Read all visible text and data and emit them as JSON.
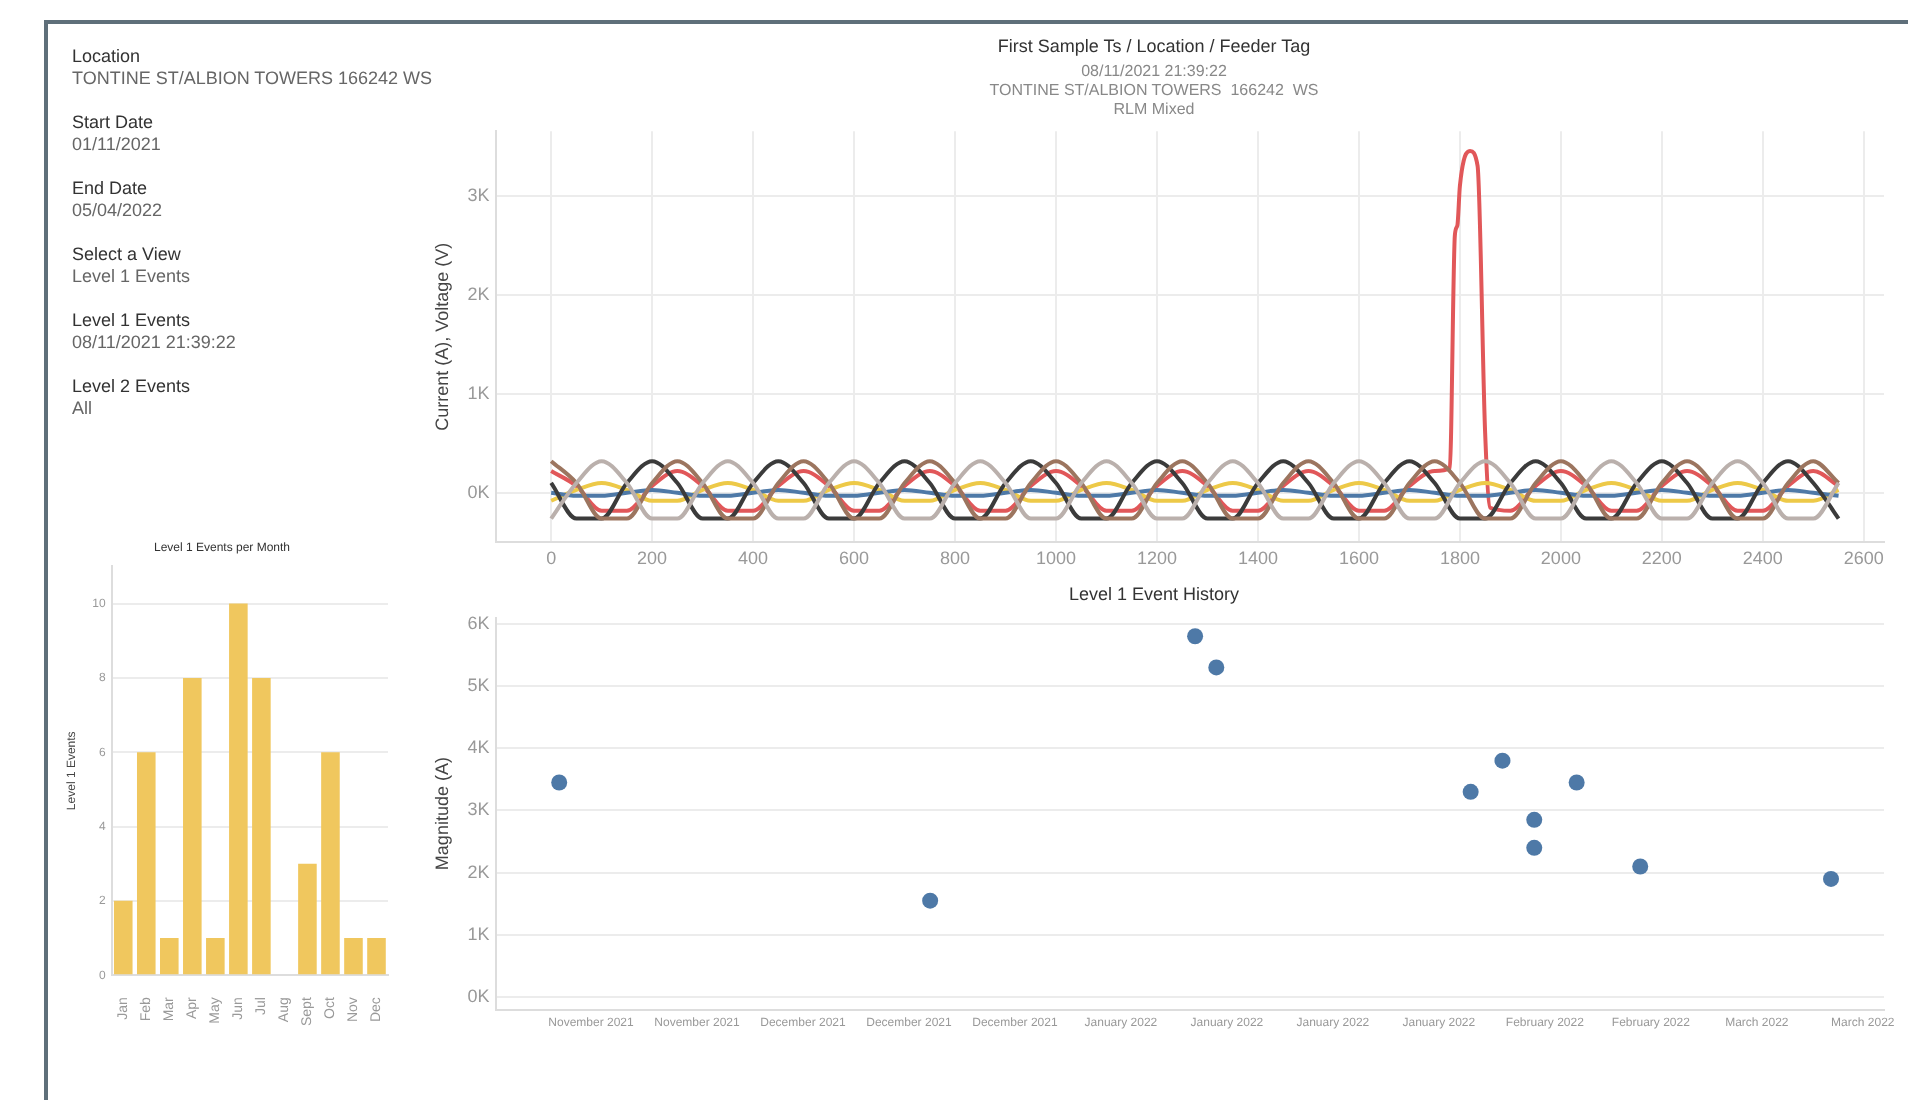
{
  "chart_data": [
    {
      "type": "other",
      "annotations": [
        "Location",
        "TONTINE ST/ALBION TOWERS  166242  WS",
        "Start Date",
        "01/11/2021",
        "End Date",
        "05/04/2022",
        "Select a View",
        "Level 1 Events",
        "Level 1 Events",
        "08/11/2021 21:39:22",
        "Level 2 Events",
        "All"
      ]
    },
    {
      "type": "line",
      "title": "First Sample Ts / Location / Feeder Tag",
      "subtitle": "08/11/2021 21:39:22\nTONTINE ST/ALBION TOWERS  166242  WS\nRLM Mixed",
      "ylabel": "Current (A), Voltage (V)",
      "grid": true,
      "legend": false,
      "marker": "none",
      "line_style": "solid",
      "xlim": [
        -110,
        2640
      ],
      "xticks": [
        0,
        200,
        400,
        600,
        800,
        1000,
        1200,
        1400,
        1600,
        1800,
        2000,
        2200,
        2400,
        2600
      ],
      "ylim": [
        -500,
        3650
      ],
      "yticks": [
        {
          "value": 0,
          "label": "0K"
        },
        {
          "value": 1000,
          "label": "1K"
        },
        {
          "value": 2000,
          "label": "2K"
        },
        {
          "value": 3000,
          "label": "3K"
        }
      ],
      "x": [
        0,
        50,
        100,
        150,
        200,
        250,
        300,
        350,
        400,
        450,
        500,
        550,
        600,
        650,
        700,
        750,
        800,
        850,
        900,
        950,
        1000,
        1050,
        1100,
        1150,
        1200,
        1250,
        1300,
        1350,
        1400,
        1450,
        1500,
        1550,
        1600,
        1650,
        1700,
        1750,
        1800,
        1850,
        1900,
        1950,
        2000,
        2050,
        2100,
        2150,
        2200,
        2250,
        2300,
        2350,
        2400,
        2450,
        2500,
        2550
      ],
      "series": [
        {
          "color": "#bab0ac",
          "values": [
            -260,
            100,
            320,
            100,
            -260,
            -260,
            100,
            320,
            100,
            -260,
            -260,
            100,
            320,
            100,
            -260,
            -260,
            100,
            320,
            100,
            -260,
            -260,
            100,
            320,
            100,
            -260,
            -260,
            100,
            320,
            100,
            -260,
            -260,
            100,
            320,
            100,
            -260,
            -260,
            100,
            320,
            100,
            -260,
            -260,
            100,
            320,
            100,
            -260,
            -260,
            100,
            320,
            100,
            -260,
            -260,
            100
          ]
        },
        {
          "color": "#9c755f",
          "values": [
            320,
            100,
            -260,
            -260,
            100,
            320,
            100,
            -260,
            -260,
            100,
            320,
            100,
            -260,
            -260,
            100,
            320,
            100,
            -260,
            -260,
            100,
            320,
            100,
            -260,
            -260,
            100,
            320,
            100,
            -260,
            -260,
            100,
            320,
            100,
            -260,
            -260,
            100,
            320,
            100,
            -260,
            -260,
            100,
            320,
            100,
            -260,
            -260,
            100,
            320,
            100,
            -260,
            -260,
            100,
            320,
            100
          ]
        },
        {
          "color": "#3b3b3b",
          "values": [
            100,
            -260,
            -260,
            100,
            320,
            100,
            -260,
            -260,
            100,
            320,
            100,
            -260,
            -260,
            100,
            320,
            100,
            -260,
            -260,
            100,
            320,
            100,
            -260,
            -260,
            100,
            320,
            100,
            -260,
            -260,
            100,
            320,
            100,
            -260,
            -260,
            100,
            320,
            100,
            -260,
            -260,
            100,
            320,
            100,
            -260,
            -260,
            100,
            320,
            100,
            -260,
            -260,
            100,
            320,
            100,
            -260
          ]
        },
        {
          "color": "#4e79a7",
          "values": [
            0,
            -30,
            -30,
            0,
            30,
            0,
            -30,
            -30,
            0,
            30,
            0,
            -30,
            -30,
            0,
            30,
            0,
            -30,
            -30,
            0,
            30,
            0,
            -30,
            -30,
            0,
            30,
            0,
            -30,
            -30,
            0,
            30,
            0,
            -30,
            -30,
            0,
            30,
            0,
            -30,
            -30,
            0,
            30,
            0,
            -30,
            -30,
            0,
            30,
            0,
            -30,
            -30,
            0,
            30,
            0,
            -30
          ]
        },
        {
          "color": "#edc948",
          "values": [
            -80,
            30,
            100,
            30,
            -80,
            -80,
            30,
            100,
            30,
            -80,
            -80,
            30,
            100,
            30,
            -80,
            -80,
            30,
            100,
            30,
            -80,
            -80,
            30,
            100,
            30,
            -80,
            -80,
            30,
            100,
            30,
            -80,
            -80,
            30,
            100,
            30,
            -80,
            -80,
            30,
            100,
            30,
            -80,
            -80,
            30,
            100,
            30,
            -80,
            -80,
            30,
            100,
            30,
            -80,
            -80,
            30
          ]
        },
        {
          "color": "#e15759",
          "x": [
            0,
            50,
            100,
            150,
            200,
            250,
            300,
            350,
            400,
            450,
            500,
            550,
            600,
            650,
            700,
            750,
            800,
            850,
            900,
            950,
            1000,
            1050,
            1100,
            1150,
            1200,
            1250,
            1300,
            1350,
            1400,
            1450,
            1500,
            1550,
            1600,
            1650,
            1700,
            1750,
            1780,
            1790,
            1795,
            1800,
            1820,
            1835,
            1850,
            1860,
            1900,
            1950,
            2000,
            2050,
            2100,
            2150,
            2200,
            2250,
            2300,
            2350,
            2400,
            2450,
            2500,
            2550
          ],
          "values": [
            220,
            70,
            -180,
            -180,
            70,
            220,
            70,
            -180,
            -180,
            70,
            220,
            70,
            -180,
            -180,
            70,
            220,
            70,
            -180,
            -180,
            70,
            220,
            70,
            -180,
            -180,
            70,
            220,
            70,
            -180,
            -180,
            70,
            220,
            70,
            -180,
            -180,
            70,
            220,
            250,
            2600,
            2700,
            3100,
            3450,
            3300,
            600,
            -150,
            -180,
            70,
            220,
            70,
            -180,
            -180,
            70,
            220,
            70,
            -180,
            -180,
            70,
            220,
            70
          ]
        }
      ]
    },
    {
      "type": "bar",
      "title": "Level 1 Events per Month",
      "ylabel": "Level 1 Events",
      "grid": "y",
      "legend": false,
      "color": "#f0c75e",
      "categories": [
        "Jan",
        "Feb",
        "Mar",
        "Apr",
        "May",
        "Jun",
        "Jul",
        "Aug",
        "Sept",
        "Oct",
        "Nov",
        "Dec"
      ],
      "values": [
        2,
        6,
        1,
        8,
        1,
        10,
        8,
        null,
        3,
        6,
        1,
        1
      ],
      "ylim": [
        0,
        11
      ],
      "yticks": [
        0,
        2,
        4,
        6,
        8,
        10
      ]
    },
    {
      "type": "scatter",
      "title": "Level 1 Event History",
      "ylabel": "Magnitude (A)",
      "grid": "y",
      "legend": false,
      "marker": "circle",
      "color": "#4e79a7",
      "x": [
        "2021-11-09",
        "2021-12-14",
        "2022-01-08",
        "2022-01-10",
        "2022-02-03",
        "2022-02-06",
        "2022-02-09",
        "2022-02-09",
        "2022-02-13",
        "2022-02-19",
        "2022-03-09"
      ],
      "values": [
        3450,
        1550,
        5800,
        5300,
        3300,
        3800,
        2850,
        2400,
        3450,
        2100,
        1900
      ],
      "xlim": [
        "2021-11-03",
        "2022-03-14"
      ],
      "xticks": [
        {
          "value": "2021-11-12",
          "label": "November 2021"
        },
        {
          "value": "2021-11-22",
          "label": "November 2021"
        },
        {
          "value": "2021-12-02",
          "label": "December 2021"
        },
        {
          "value": "2021-12-12",
          "label": "December 2021"
        },
        {
          "value": "2021-12-22",
          "label": "December 2021"
        },
        {
          "value": "2022-01-01",
          "label": "January 2022"
        },
        {
          "value": "2022-01-11",
          "label": "January 2022"
        },
        {
          "value": "2022-01-21",
          "label": "January 2022"
        },
        {
          "value": "2022-01-31",
          "label": "January 2022"
        },
        {
          "value": "2022-02-10",
          "label": "February 2022"
        },
        {
          "value": "2022-02-20",
          "label": "February 2022"
        },
        {
          "value": "2022-03-02",
          "label": "March 2022"
        },
        {
          "value": "2022-03-12",
          "label": "March 2022"
        }
      ],
      "ylim": [
        -200,
        6100
      ],
      "yticks": [
        {
          "value": 0,
          "label": "0K"
        },
        {
          "value": 1000,
          "label": "1K"
        },
        {
          "value": 2000,
          "label": "2K"
        },
        {
          "value": 3000,
          "label": "3K"
        },
        {
          "value": 4000,
          "label": "4K"
        },
        {
          "value": 5000,
          "label": "5K"
        },
        {
          "value": 6000,
          "label": "6K"
        }
      ]
    }
  ]
}
